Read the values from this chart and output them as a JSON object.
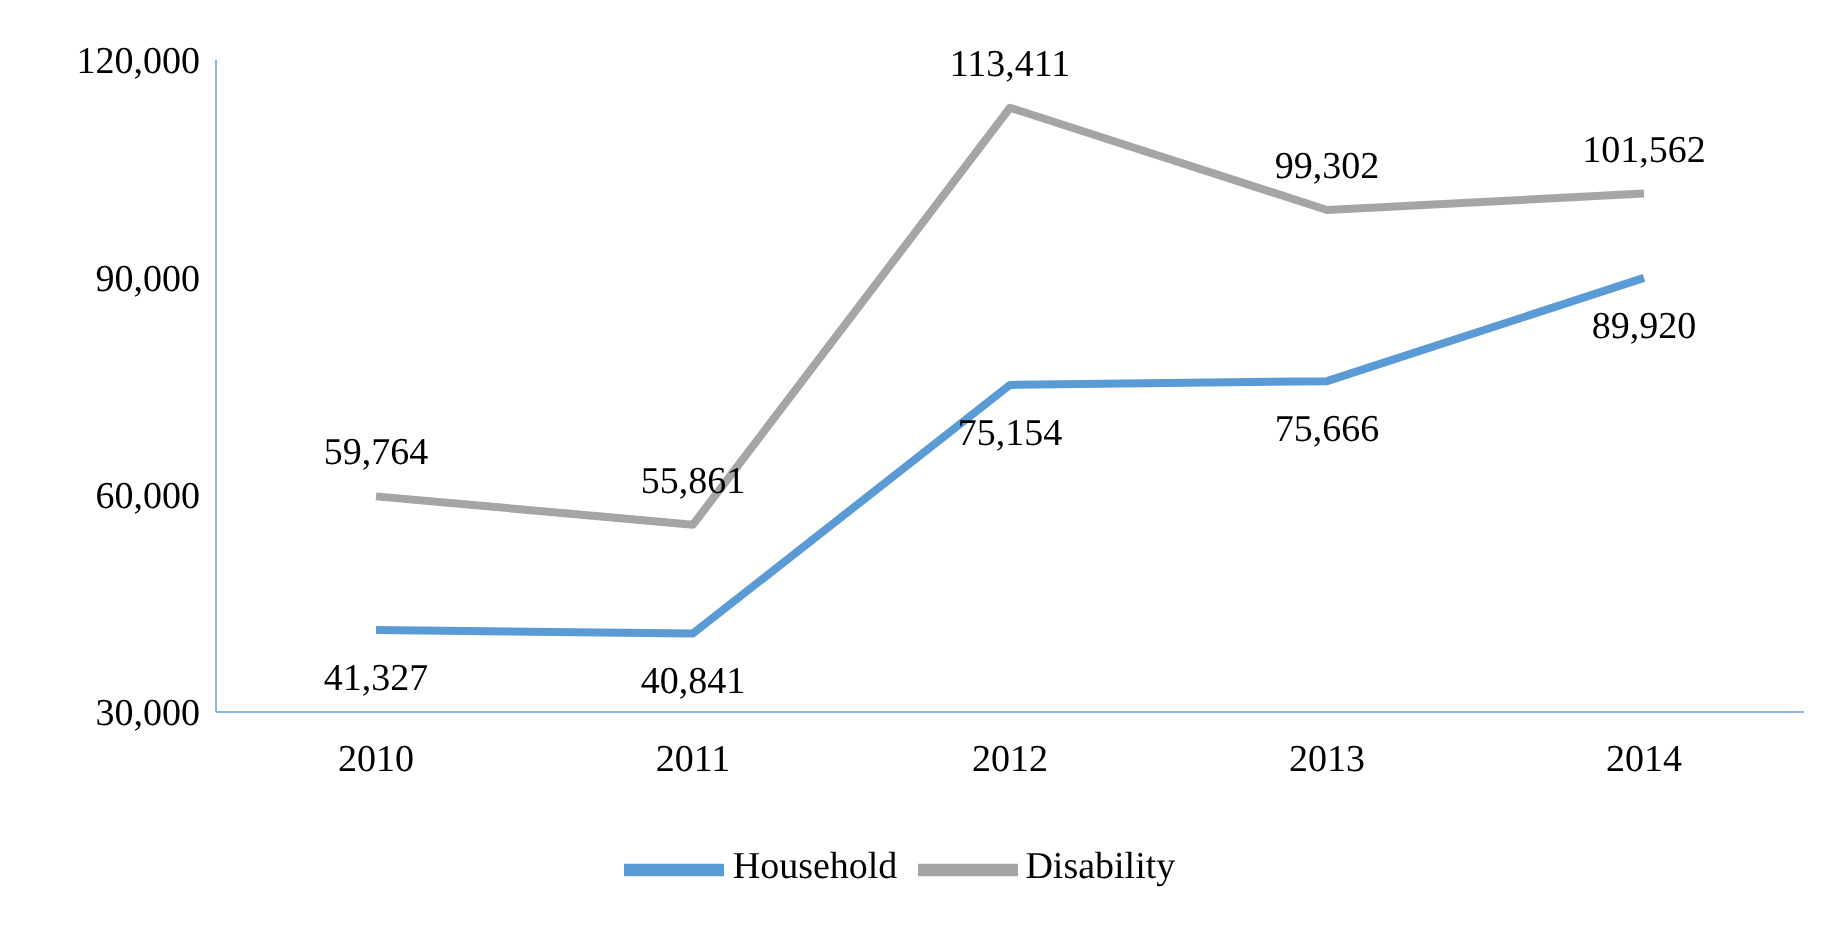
{
  "chart_data": {
    "type": "line",
    "categories": [
      "2010",
      "2011",
      "2012",
      "2013",
      "2014"
    ],
    "series": [
      {
        "name": "Household",
        "color": "#5b9bd5",
        "values": [
          41327,
          40841,
          75154,
          75666,
          89920
        ],
        "value_labels": [
          "41,327",
          "40,841",
          "75,154",
          "75,666",
          "89,920"
        ]
      },
      {
        "name": "Disability",
        "color": "#a5a5a5",
        "values": [
          59764,
          55861,
          113411,
          99302,
          101562
        ],
        "value_labels": [
          "59,764",
          "55,861",
          "113,411",
          "99,302",
          "101,562"
        ]
      }
    ],
    "ylim": [
      30000,
      120000
    ],
    "yticks": [
      {
        "value": 30000,
        "label": "30,000"
      },
      {
        "value": 60000,
        "label": "60,000"
      },
      {
        "value": 90000,
        "label": "90,000"
      },
      {
        "value": 120000,
        "label": "120,000"
      }
    ],
    "grid": false,
    "legend": "bottom",
    "marker": "none",
    "line_style": "solid"
  }
}
